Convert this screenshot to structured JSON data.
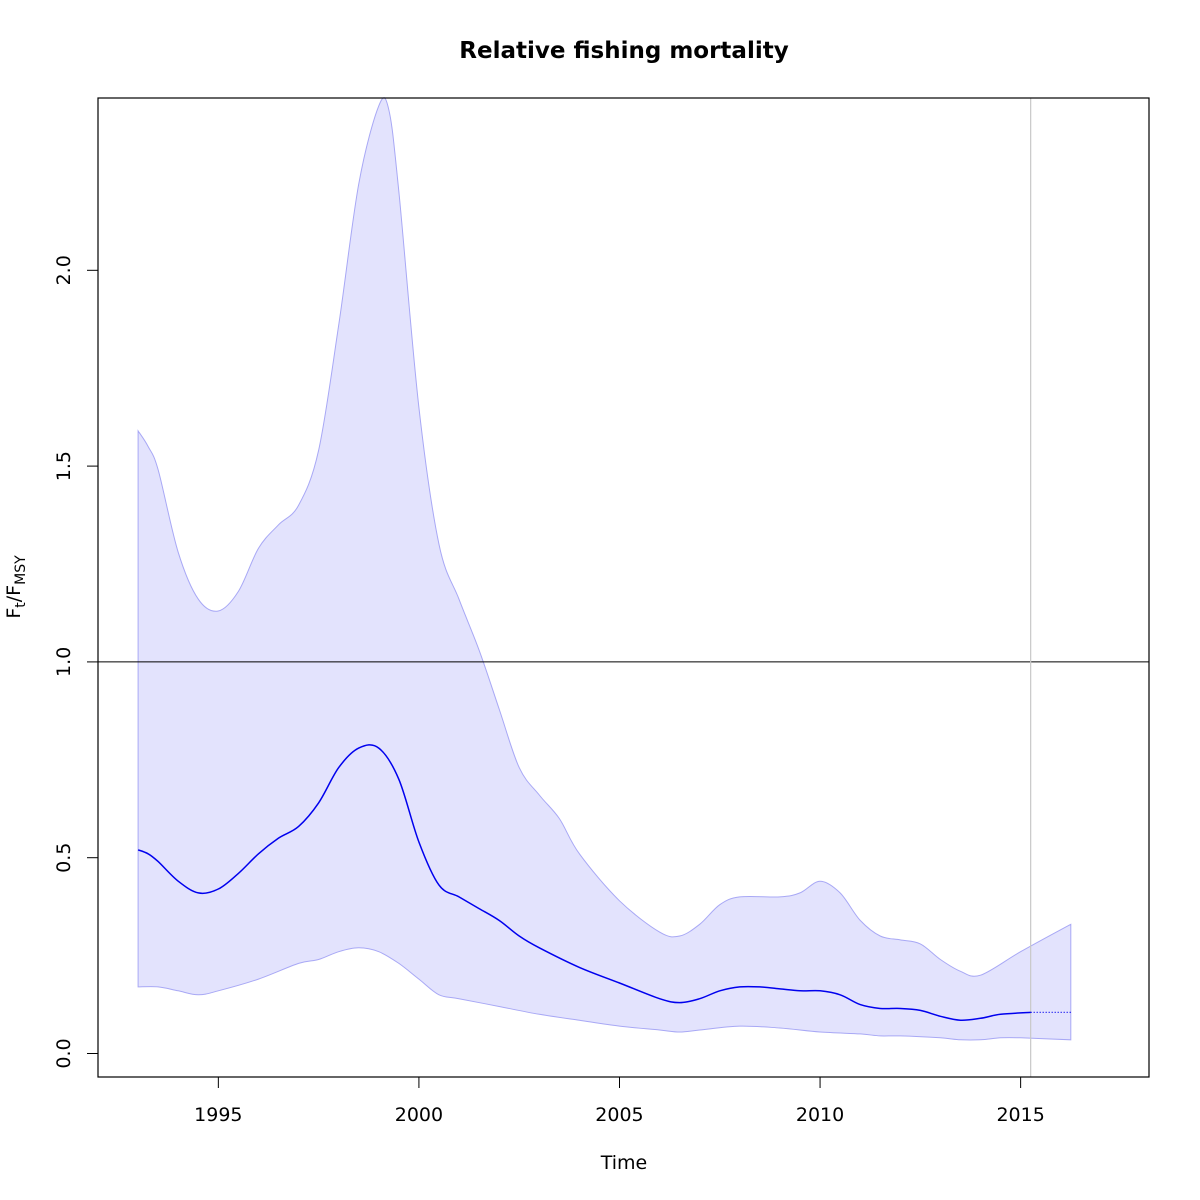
{
  "chart_data": {
    "type": "line",
    "title": "Relative fishing mortality",
    "xlabel": "Time",
    "ylabel": {
      "main": "F",
      "sub1": "t",
      "sep": "/",
      "main2": "F",
      "sub2": "MSY"
    },
    "xlim": [
      1992.0,
      2018.2
    ],
    "ylim": [
      -0.06,
      2.44
    ],
    "x_ticks": [
      1995,
      2000,
      2005,
      2010,
      2015
    ],
    "y_ticks": [
      0.0,
      0.5,
      1.0,
      1.5,
      2.0
    ],
    "x_tick_labels": [
      "1995",
      "2000",
      "2005",
      "2010",
      "2015"
    ],
    "y_tick_labels": [
      "0.0",
      "0.5",
      "1.0",
      "1.5",
      "2.0"
    ],
    "reference_line_y": 1.0,
    "vertical_line_x": 2015.25,
    "grid": false,
    "colors": {
      "line": "#0000ee",
      "band_fill": "#e3e3fd",
      "band_edge": "#a8a8f5",
      "reference": "#000000",
      "vline": "#c8c8c8"
    },
    "series": [
      {
        "role": "estimate",
        "x": [
          1993.0,
          1993.25,
          1993.5,
          1994.0,
          1994.5,
          1995.0,
          1995.5,
          1996.0,
          1996.5,
          1997.0,
          1997.5,
          1998.0,
          1998.5,
          1999.0,
          1999.5,
          2000.0,
          2000.5,
          2001.0,
          2001.5,
          2002.0,
          2002.5,
          2003.0,
          2004.0,
          2005.0,
          2006.0,
          2006.5,
          2007.0,
          2007.5,
          2008.0,
          2008.5,
          2009.0,
          2009.5,
          2010.0,
          2010.5,
          2011.0,
          2011.5,
          2012.0,
          2012.5,
          2013.0,
          2013.5,
          2014.0,
          2014.5,
          2015.25
        ],
        "y": [
          0.52,
          0.51,
          0.49,
          0.44,
          0.41,
          0.42,
          0.46,
          0.51,
          0.55,
          0.58,
          0.64,
          0.73,
          0.78,
          0.78,
          0.7,
          0.54,
          0.43,
          0.4,
          0.37,
          0.34,
          0.3,
          0.27,
          0.22,
          0.18,
          0.14,
          0.13,
          0.14,
          0.16,
          0.17,
          0.17,
          0.165,
          0.16,
          0.16,
          0.15,
          0.125,
          0.115,
          0.115,
          0.11,
          0.095,
          0.085,
          0.09,
          0.1,
          0.105
        ]
      },
      {
        "role": "projection",
        "x": [
          2015.25,
          2016.25
        ],
        "y": [
          0.105,
          0.105
        ]
      },
      {
        "role": "upper_bound",
        "x": [
          1993.0,
          1993.25,
          1993.5,
          1994.0,
          1994.5,
          1995.0,
          1995.5,
          1996.0,
          1996.5,
          1997.0,
          1997.5,
          1998.0,
          1998.5,
          1999.0,
          1999.25,
          1999.5,
          2000.0,
          2000.5,
          2001.0,
          2001.5,
          2002.0,
          2002.5,
          2003.0,
          2003.5,
          2004.0,
          2005.0,
          2006.0,
          2006.5,
          2007.0,
          2007.5,
          2008.0,
          2009.0,
          2009.5,
          2010.0,
          2010.5,
          2011.0,
          2011.5,
          2012.0,
          2012.5,
          2013.0,
          2013.5,
          2014.0,
          2015.0,
          2016.25
        ],
        "y": [
          1.59,
          1.55,
          1.49,
          1.28,
          1.16,
          1.13,
          1.18,
          1.29,
          1.35,
          1.4,
          1.54,
          1.86,
          2.22,
          2.42,
          2.41,
          2.2,
          1.65,
          1.3,
          1.16,
          1.03,
          0.88,
          0.73,
          0.66,
          0.6,
          0.51,
          0.39,
          0.31,
          0.3,
          0.33,
          0.38,
          0.4,
          0.4,
          0.41,
          0.44,
          0.41,
          0.34,
          0.3,
          0.29,
          0.28,
          0.24,
          0.21,
          0.2,
          0.26,
          0.33
        ]
      },
      {
        "role": "lower_bound",
        "x": [
          1993.0,
          1993.5,
          1994.0,
          1994.5,
          1995.0,
          1996.0,
          1997.0,
          1997.5,
          1998.0,
          1998.5,
          1999.0,
          1999.5,
          2000.0,
          2000.5,
          2001.0,
          2002.0,
          2003.0,
          2004.0,
          2005.0,
          2006.0,
          2006.5,
          2007.0,
          2008.0,
          2009.0,
          2010.0,
          2011.0,
          2011.5,
          2012.0,
          2013.0,
          2013.5,
          2014.0,
          2014.5,
          2015.0,
          2016.25
        ],
        "y": [
          0.17,
          0.17,
          0.16,
          0.15,
          0.16,
          0.19,
          0.23,
          0.24,
          0.26,
          0.27,
          0.26,
          0.23,
          0.19,
          0.15,
          0.14,
          0.12,
          0.1,
          0.085,
          0.07,
          0.06,
          0.055,
          0.06,
          0.07,
          0.065,
          0.055,
          0.05,
          0.045,
          0.045,
          0.04,
          0.035,
          0.035,
          0.04,
          0.04,
          0.035
        ]
      }
    ]
  }
}
